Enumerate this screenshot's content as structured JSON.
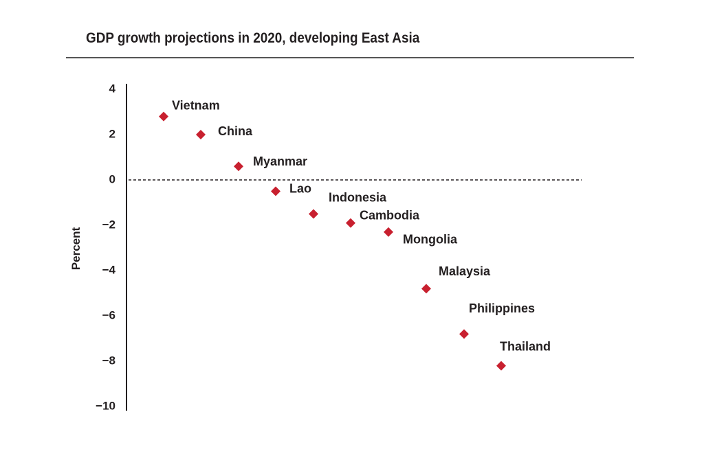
{
  "chart_data": {
    "type": "scatter",
    "title": "GDP growth projections in 2020, developing East Asia",
    "xlabel": "",
    "ylabel": "Percent",
    "ylim": [
      -10,
      4
    ],
    "yticks": [
      4,
      2,
      0,
      -2,
      -4,
      -6,
      -8,
      -10
    ],
    "ytick_labels": [
      "4",
      "2",
      "0",
      "−2",
      "−4",
      "−6",
      "−8",
      "−10"
    ],
    "reference_line": {
      "y": 0,
      "style": "dashed"
    },
    "grid": false,
    "marker_color": "#c8202f",
    "points": [
      {
        "label": "Vietnam",
        "y": 2.8
      },
      {
        "label": "China",
        "y": 2.0
      },
      {
        "label": "Myanmar",
        "y": 0.6
      },
      {
        "label": "Lao",
        "y": -0.5
      },
      {
        "label": "Indonesia",
        "y": -1.5
      },
      {
        "label": "Cambodia",
        "y": -1.9
      },
      {
        "label": "Mongolia",
        "y": -2.3
      },
      {
        "label": "Malaysia",
        "y": -4.8
      },
      {
        "label": "Philippines",
        "y": -6.8
      },
      {
        "label": "Thailand",
        "y": -8.2
      }
    ]
  }
}
